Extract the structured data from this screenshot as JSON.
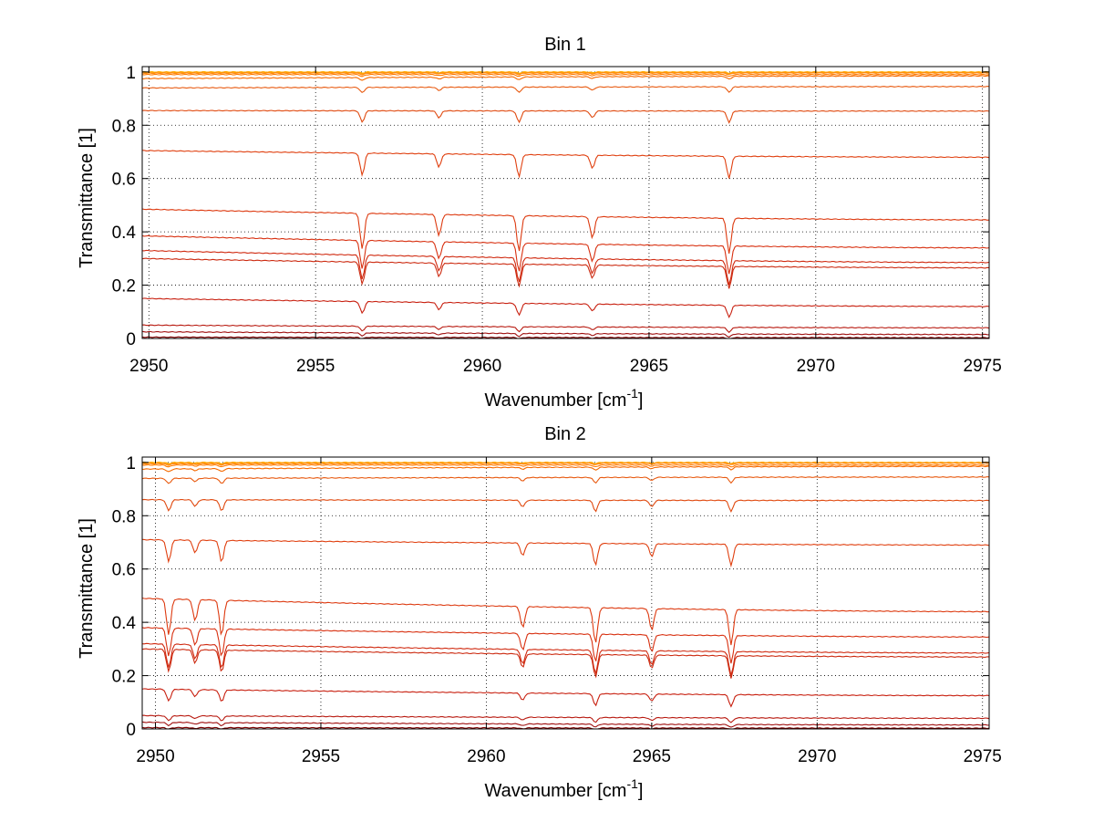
{
  "chart_data": [
    {
      "type": "line",
      "title": "Bin 1",
      "xlabel": "Wavenumber [cm",
      "xlabel_sup": "-1",
      "xlabel_end": "]",
      "ylabel": "Transmittance [1]",
      "xlim": [
        2949.8,
        2975.2
      ],
      "ylim": [
        0,
        1.02
      ],
      "xticks": [
        "2950",
        "2955",
        "2960",
        "2965",
        "2970",
        "2975"
      ],
      "yticks": [
        "0",
        "0.2",
        "0.4",
        "0.6",
        "0.8",
        "1"
      ],
      "grid": true,
      "absorption_lines": [
        2956.4,
        2958.7,
        2961.1,
        2963.3,
        2967.4
      ],
      "series": [
        {
          "start": 1.0,
          "end": 1.0,
          "color": "#ffb000"
        },
        {
          "start": 0.998,
          "end": 0.998,
          "color": "#ff9a00"
        },
        {
          "start": 0.995,
          "end": 0.996,
          "color": "#ff8a10"
        },
        {
          "start": 0.99,
          "end": 0.99,
          "color": "#ff7a00"
        },
        {
          "start": 0.975,
          "end": 0.985,
          "color": "#f56a00"
        },
        {
          "start": 0.94,
          "end": 0.945,
          "color": "#e85a10"
        },
        {
          "start": 0.855,
          "end": 0.853,
          "color": "#e04a10"
        },
        {
          "start": 0.705,
          "end": 0.68,
          "color": "#e04010"
        },
        {
          "start": 0.485,
          "end": 0.445,
          "color": "#dd3a10"
        },
        {
          "start": 0.385,
          "end": 0.34,
          "color": "#d83010"
        },
        {
          "start": 0.33,
          "end": 0.285,
          "color": "#d02a10"
        },
        {
          "start": 0.3,
          "end": 0.265,
          "color": "#cc2a10"
        },
        {
          "start": 0.15,
          "end": 0.12,
          "color": "#c82010"
        },
        {
          "start": 0.05,
          "end": 0.04,
          "color": "#b81a10"
        },
        {
          "start": 0.025,
          "end": 0.015,
          "color": "#a01010"
        },
        {
          "start": 0.005,
          "end": 0.003,
          "color": "#800000"
        }
      ]
    },
    {
      "type": "line",
      "title": "Bin 2",
      "xlabel": "Wavenumber [cm",
      "xlabel_sup": "-1",
      "xlabel_end": "]",
      "ylabel": "Transmittance [1]",
      "xlim": [
        2949.6,
        2975.2
      ],
      "ylim": [
        0,
        1.02
      ],
      "xticks": [
        "2950",
        "2955",
        "2960",
        "2965",
        "2970",
        "2975"
      ],
      "yticks": [
        "0",
        "0.2",
        "0.4",
        "0.6",
        "0.8",
        "1"
      ],
      "grid": true,
      "absorption_lines": [
        2950.4,
        2951.2,
        2952.0,
        2961.1,
        2963.3,
        2965.0,
        2967.4
      ],
      "series": [
        {
          "start": 1.0,
          "end": 1.0,
          "color": "#ffb000"
        },
        {
          "start": 0.998,
          "end": 0.998,
          "color": "#ff9a00"
        },
        {
          "start": 0.995,
          "end": 0.997,
          "color": "#ff8a10"
        },
        {
          "start": 0.99,
          "end": 0.99,
          "color": "#ff7a00"
        },
        {
          "start": 0.975,
          "end": 0.985,
          "color": "#f56a00"
        },
        {
          "start": 0.94,
          "end": 0.945,
          "color": "#e85a10"
        },
        {
          "start": 0.86,
          "end": 0.857,
          "color": "#e04a10"
        },
        {
          "start": 0.71,
          "end": 0.69,
          "color": "#e04010"
        },
        {
          "start": 0.49,
          "end": 0.44,
          "color": "#dd3a10"
        },
        {
          "start": 0.38,
          "end": 0.345,
          "color": "#d83010"
        },
        {
          "start": 0.32,
          "end": 0.285,
          "color": "#d02a10"
        },
        {
          "start": 0.3,
          "end": 0.27,
          "color": "#cc2a10"
        },
        {
          "start": 0.15,
          "end": 0.125,
          "color": "#c82010"
        },
        {
          "start": 0.05,
          "end": 0.04,
          "color": "#b81a10"
        },
        {
          "start": 0.025,
          "end": 0.015,
          "color": "#a01010"
        },
        {
          "start": 0.005,
          "end": 0.003,
          "color": "#800000"
        }
      ]
    }
  ]
}
